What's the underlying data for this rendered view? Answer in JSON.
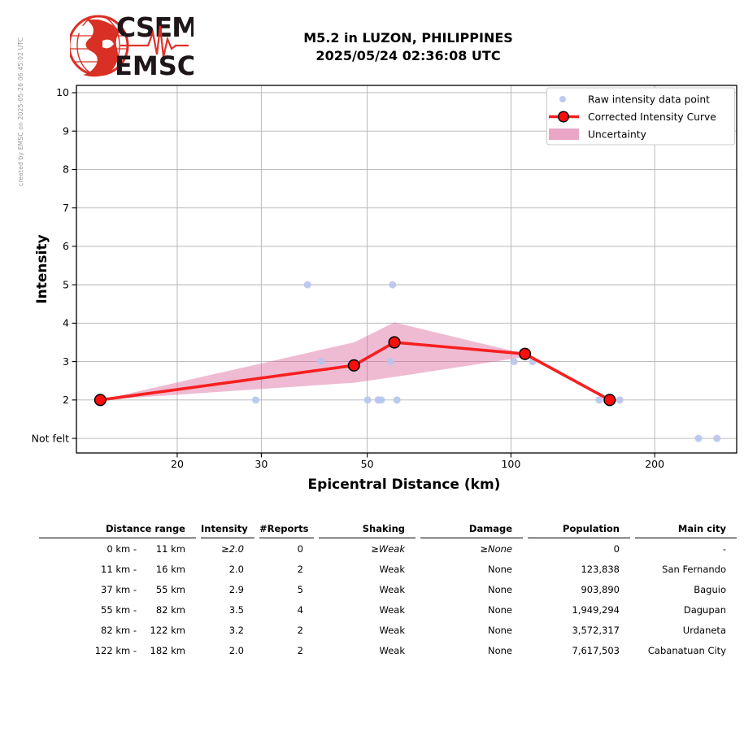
{
  "header": {
    "logo_line1": "CSEM",
    "logo_line2": "EMSC",
    "title_line1": "M5.2 in LUZON, PHILIPPINES",
    "title_line2": "2025/05/24 02:36:08 UTC"
  },
  "watermark": "created by EMSC on 2025-05-26 06:45:02 UTC",
  "chart_data": {
    "type": "line",
    "x_scale": "log",
    "xlabel": "Epicentral Distance (km)",
    "ylabel": "Intensity",
    "x_range_km": [
      12.3,
      297
    ],
    "y_range": [
      0.62,
      10.19
    ],
    "grid": true,
    "x_ticks": [
      {
        "v": 20,
        "label": "20"
      },
      {
        "v": 30,
        "label": "30"
      },
      {
        "v": 50,
        "label": "50"
      },
      {
        "v": 100,
        "label": "100"
      },
      {
        "v": 200,
        "label": "200"
      }
    ],
    "y_ticks": [
      {
        "v": 1,
        "label": "Not felt"
      },
      {
        "v": 2,
        "label": "2"
      },
      {
        "v": 3,
        "label": "3"
      },
      {
        "v": 4,
        "label": "4"
      },
      {
        "v": 5,
        "label": "5"
      },
      {
        "v": 6,
        "label": "6"
      },
      {
        "v": 7,
        "label": "7"
      },
      {
        "v": 8,
        "label": "8"
      },
      {
        "v": 9,
        "label": "9"
      },
      {
        "v": 10,
        "label": "10"
      }
    ],
    "raw_points": [
      [
        29.2,
        2
      ],
      [
        37.5,
        5
      ],
      [
        40,
        3
      ],
      [
        50.1,
        2
      ],
      [
        52.7,
        2
      ],
      [
        53.5,
        2
      ],
      [
        55.9,
        3
      ],
      [
        56.5,
        5
      ],
      [
        57.7,
        2
      ],
      [
        101.5,
        3
      ],
      [
        111,
        3
      ],
      [
        153,
        2
      ],
      [
        169,
        2
      ],
      [
        247,
        1
      ],
      [
        270,
        1
      ]
    ],
    "curve_points": [
      [
        13.8,
        2.0
      ],
      [
        46.9,
        2.9
      ],
      [
        57.0,
        3.5
      ],
      [
        107,
        3.2
      ],
      [
        161,
        2.0
      ]
    ],
    "band_upper": [
      [
        13.8,
        2.0
      ],
      [
        46.9,
        3.5
      ],
      [
        57.0,
        4.02
      ],
      [
        107,
        3.2
      ]
    ],
    "band_lower": [
      [
        13.8,
        2.0
      ],
      [
        46.9,
        2.45
      ],
      [
        57.0,
        2.6
      ],
      [
        107,
        3.12
      ]
    ],
    "legend": [
      {
        "type": "dot",
        "label": "Raw intensity data point"
      },
      {
        "type": "line-marker",
        "label": "Corrected Intensity Curve"
      },
      {
        "type": "patch",
        "label": "Uncertainty"
      }
    ],
    "legend_position": "upper right",
    "colors": {
      "raw": "#b7c4ed",
      "curve": "#f71f1f",
      "curve_marker": "#fb0d0d",
      "band": "#d85e96",
      "band_opacity": 0.42,
      "grid": "#b2b2b2",
      "axis": "#000000",
      "logo_red": "#d93025",
      "logo_dark": "#1f161a",
      "watermark_gray": "#999999"
    }
  },
  "table": {
    "columns": [
      "Distance range",
      "Intensity",
      "#Reports",
      "Shaking",
      "Damage",
      "Population",
      "Main city"
    ],
    "rows": [
      {
        "range1": "0 km -",
        "range2": "11 km",
        "intensity": "≥2.0",
        "reports": "0",
        "shaking": "≥Weak",
        "damage": "≥None",
        "population": "0",
        "city": "-",
        "approx": true
      },
      {
        "range1": "11 km -",
        "range2": "16 km",
        "intensity": "2.0",
        "reports": "2",
        "shaking": "Weak",
        "damage": "None",
        "population": "123,838",
        "city": "San Fernando",
        "approx": false
      },
      {
        "range1": "37 km -",
        "range2": "55 km",
        "intensity": "2.9",
        "reports": "5",
        "shaking": "Weak",
        "damage": "None",
        "population": "903,890",
        "city": "Baguio",
        "approx": false
      },
      {
        "range1": "55 km -",
        "range2": "82 km",
        "intensity": "3.5",
        "reports": "4",
        "shaking": "Weak",
        "damage": "None",
        "population": "1,949,294",
        "city": "Dagupan",
        "approx": false
      },
      {
        "range1": "82 km -",
        "range2": "122 km",
        "intensity": "3.2",
        "reports": "2",
        "shaking": "Weak",
        "damage": "None",
        "population": "3,572,317",
        "city": "Urdaneta",
        "approx": false
      },
      {
        "range1": "122 km -",
        "range2": "182 km",
        "intensity": "2.0",
        "reports": "2",
        "shaking": "Weak",
        "damage": "None",
        "population": "7,617,503",
        "city": "Cabanatuan City",
        "approx": false
      }
    ]
  }
}
